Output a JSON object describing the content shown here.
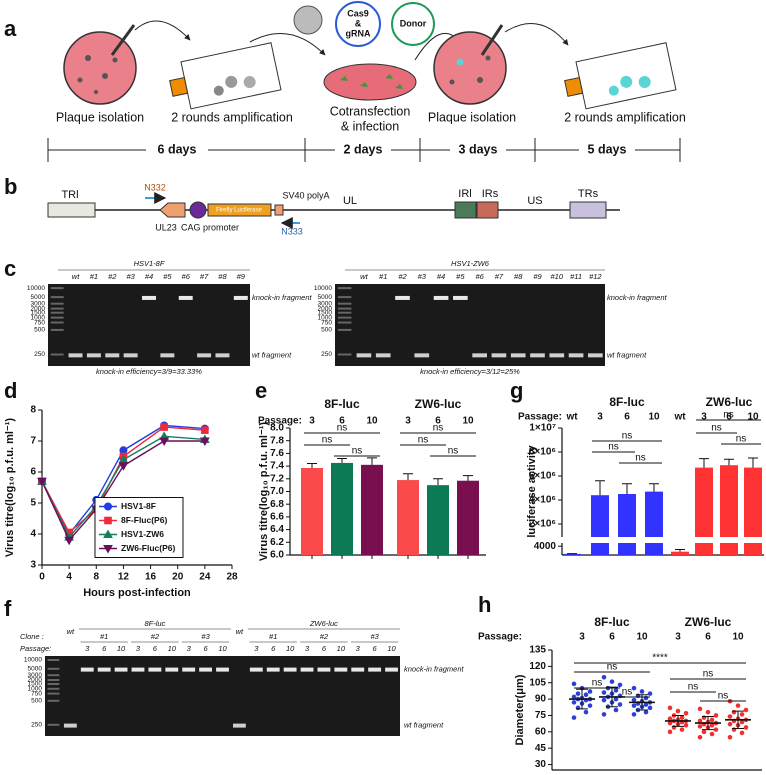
{
  "panel_labels": [
    "a",
    "b",
    "c",
    "d",
    "e",
    "f",
    "g",
    "h"
  ],
  "workflow": {
    "steps": [
      "Plaque isolation",
      "2 rounds amplification",
      "Cotransfection",
      "& infection",
      "Plaque isolation",
      "2 rounds amplification"
    ],
    "reagents": [
      "Cas9",
      "&",
      "gRNA",
      "Donor"
    ],
    "durations": [
      "6 days",
      "2 days",
      "3 days",
      "5 days"
    ]
  },
  "construct": {
    "regions": [
      "TRl",
      "UL",
      "IRl",
      "IRs",
      "US",
      "TRs"
    ],
    "elements": [
      "N332",
      "UL23",
      "CAG promoter",
      "Firefly Luciferase",
      "SV40 polyA",
      "N333"
    ]
  },
  "gels": [
    {
      "title": "HSV1-8F",
      "lanes": [
        "wt",
        "#1",
        "#2",
        "#3",
        "#4",
        "#5",
        "#6",
        "#7",
        "#8",
        "#9"
      ],
      "ladder": [
        "10000",
        "5000",
        "3000",
        "2000",
        "1500",
        "1000",
        "750",
        "500",
        "250"
      ],
      "bands": [
        "knock-in fragment",
        "wt fragment"
      ],
      "note": "knock-in efficiency=3/9=33.33%"
    },
    {
      "title": "HSV1-ZW6",
      "lanes": [
        "wt",
        "#1",
        "#2",
        "#3",
        "#4",
        "#5",
        "#6",
        "#7",
        "#8",
        "#9",
        "#10",
        "#11",
        "#12"
      ],
      "ladder": [
        "10000",
        "5000",
        "3000",
        "2000",
        "1500",
        "1000",
        "750",
        "500",
        "250"
      ],
      "bands": [
        "knock-in fragment",
        "wt fragment"
      ],
      "note": "knock-in efficiency=3/12=25%"
    }
  ],
  "gel_f": {
    "groups": [
      "8F-luc",
      "ZW6-luc"
    ],
    "row_labels": [
      "Clone :",
      "Passage:"
    ],
    "wt": "wt",
    "clones": [
      "#1",
      "#2",
      "#3"
    ],
    "passages": [
      "3",
      "6",
      "10"
    ],
    "ladder": [
      "10000",
      "5000",
      "3000",
      "2000",
      "1500",
      "1000",
      "750",
      "500",
      "250"
    ],
    "bands": [
      "knock-in fragment",
      "wt fragment"
    ]
  },
  "chart_data": [
    {
      "type": "line",
      "ylabel": "Virus titre(log₁₀ p.f.u. ml⁻¹)",
      "xlabel": "Hours post-infection",
      "x": [
        0,
        4,
        8,
        12,
        18,
        24
      ],
      "xlim": [
        0,
        28
      ],
      "xticks": [
        0,
        4,
        8,
        12,
        16,
        20,
        24,
        28
      ],
      "ylim": [
        3,
        8
      ],
      "yticks": [
        3,
        4,
        5,
        6,
        7,
        8
      ],
      "legend": "center-right",
      "series": [
        {
          "name": "HSV1-8F",
          "color": "#1f3fe0",
          "marker": "circle",
          "values": [
            5.7,
            4.0,
            5.1,
            6.7,
            7.5,
            7.4
          ]
        },
        {
          "name": "8F-Fluc(P6)",
          "color": "#f0283c",
          "marker": "square",
          "values": [
            5.7,
            4.05,
            4.8,
            6.5,
            7.45,
            7.35
          ]
        },
        {
          "name": "HSV1-ZW6",
          "color": "#14805a",
          "marker": "triangle",
          "values": [
            5.7,
            3.9,
            4.9,
            6.4,
            7.15,
            7.05
          ]
        },
        {
          "name": "ZW6-Fluc(P6)",
          "color": "#6a0f5e",
          "marker": "triangle-down",
          "values": [
            5.7,
            3.8,
            4.8,
            6.2,
            7.0,
            7.0
          ]
        }
      ]
    },
    {
      "type": "bar",
      "ylabel": "Virus titre(log₁₀ p.f.u. ml⁻¹)",
      "groups": [
        "8F-luc",
        "ZW6-luc"
      ],
      "row_label": "Passage:",
      "categories": [
        "3",
        "6",
        "10",
        "3",
        "6",
        "10"
      ],
      "values": [
        7.37,
        7.45,
        7.42,
        7.18,
        7.1,
        7.17
      ],
      "errors": [
        0.07,
        0.07,
        0.11,
        0.1,
        0.1,
        0.08
      ],
      "colors": [
        "#fa4a4a",
        "#0b7a55",
        "#7a0f50",
        "#fa4a4a",
        "#0b7a55",
        "#7a0f50"
      ],
      "ylim": [
        6,
        8
      ],
      "yticks": [
        {
          "value": 6,
          "label": "6.0"
        },
        6.2,
        6.4,
        6.6,
        6.8,
        {
          "value": 7,
          "label": "7.0"
        },
        7.2,
        7.4,
        7.6,
        7.8,
        {
          "value": 8,
          "label": "8.0"
        }
      ],
      "annotations": [
        "ns",
        "ns",
        "ns",
        "ns",
        "ns",
        "ns"
      ]
    },
    {
      "type": "broken-bar",
      "ylabel": "luciferase activity",
      "groups": [
        "8F-luc",
        "ZW6-luc"
      ],
      "row_label": "Passage:",
      "categories": [
        "wt",
        "3",
        "6",
        "10",
        "wt",
        "3",
        "6",
        "10"
      ],
      "values": [
        500,
        4400000,
        4500000,
        4700000,
        1500,
        6700000,
        6900000,
        6700000
      ],
      "errors": [
        100,
        1200000,
        850000,
        650000,
        1000,
        750000,
        500000,
        800000
      ],
      "colors": [
        "#3333ff",
        "#3333ff",
        "#3333ff",
        "#3333ff",
        "#ff3333",
        "#ff3333",
        "#ff3333",
        "#ff3333"
      ],
      "ylim": [
        0,
        10000000
      ],
      "ybreak": [
        5000,
        1000000
      ],
      "yticks": [
        4000,
        {
          "value": 2000000,
          "label": "2×10⁶"
        },
        {
          "value": 4000000,
          "label": "4×10⁶"
        },
        {
          "value": 6000000,
          "label": "6×10⁶"
        },
        {
          "value": 8000000,
          "label": "8×10⁶"
        },
        {
          "value": 10000000,
          "label": "1×10⁷"
        }
      ],
      "annotations": [
        "ns",
        "ns",
        "ns",
        "ns",
        "ns",
        "ns"
      ]
    },
    {
      "type": "strip",
      "ylabel": "Diameter(μm)",
      "groups": [
        "8F-luc",
        "ZW6-luc"
      ],
      "row_label": "Passage:",
      "categories": [
        "3",
        "6",
        "10",
        "3",
        "6",
        "10"
      ],
      "colors": [
        "#2a3fd6",
        "#2a3fd6",
        "#2a3fd6",
        "#f03030",
        "#f03030",
        "#f03030"
      ],
      "points": [
        [
          104,
          100,
          97,
          95,
          94,
          92,
          91,
          90,
          90,
          89,
          87,
          86,
          84,
          82,
          78,
          73
        ],
        [
          110,
          106,
          103,
          100,
          98,
          96,
          95,
          93,
          92,
          90,
          89,
          87,
          85,
          83,
          80,
          76
        ],
        [
          100,
          97,
          95,
          93,
          91,
          89,
          88,
          87,
          86,
          85,
          84,
          83,
          82,
          80,
          78,
          76
        ],
        [
          82,
          79,
          77,
          75,
          73,
          72,
          71,
          70,
          70,
          69,
          68,
          67,
          66,
          64,
          62,
          60
        ],
        [
          81,
          78,
          75,
          73,
          71,
          70,
          69,
          68,
          67,
          66,
          65,
          64,
          62,
          60,
          58,
          55
        ],
        [
          88,
          84,
          80,
          78,
          76,
          74,
          72,
          71,
          70,
          69,
          67,
          66,
          64,
          62,
          59,
          55
        ]
      ],
      "means": [
        90,
        92,
        87,
        70,
        68,
        71
      ],
      "sds": [
        9,
        9,
        7,
        5,
        6,
        8
      ],
      "ylim": [
        25,
        135
      ],
      "yticks": [
        30,
        45,
        60,
        75,
        90,
        105,
        120,
        135
      ],
      "annotations": [
        "ns",
        "ns",
        "ns",
        "****",
        "ns",
        "ns",
        "ns"
      ]
    }
  ]
}
